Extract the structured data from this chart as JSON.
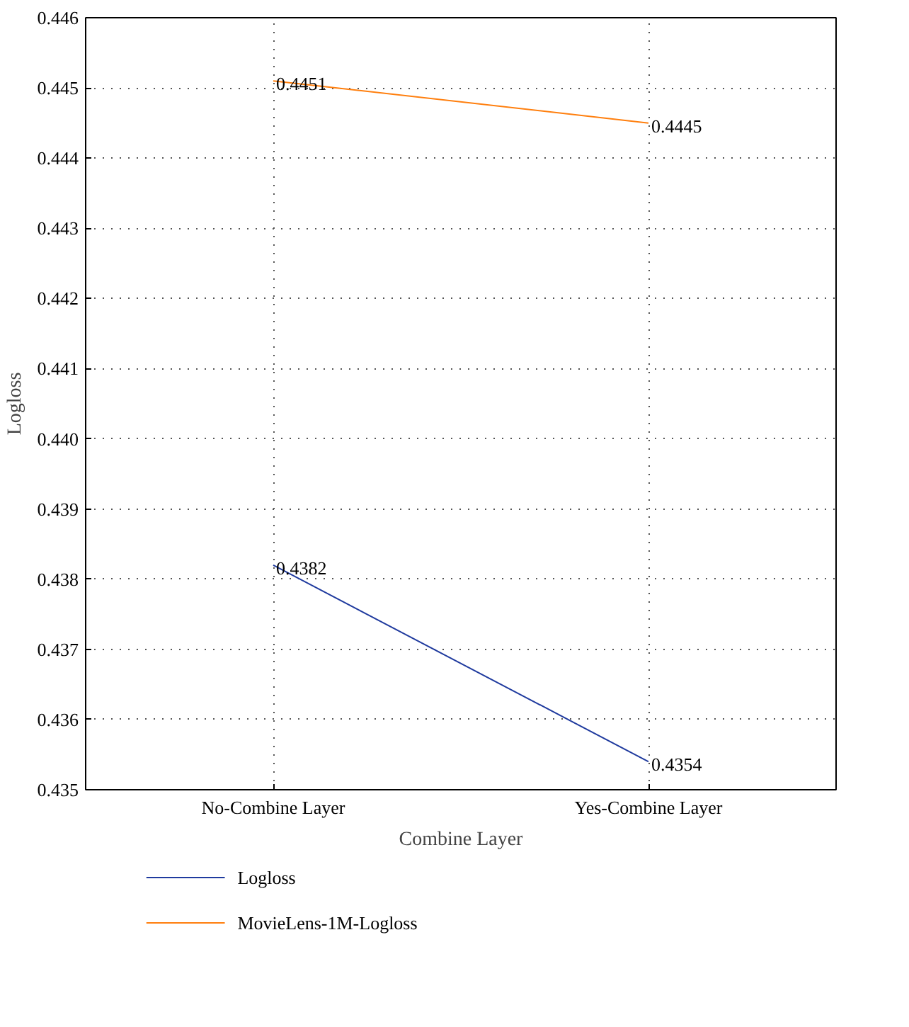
{
  "chart_data": {
    "type": "line",
    "xlabel": "Combine Layer",
    "ylabel": "Logloss",
    "categories": [
      "No-Combine Layer",
      "Yes-Combine Layer"
    ],
    "series": [
      {
        "name": "Logloss",
        "color": "#1f3a9e",
        "values": [
          0.4382,
          0.4354
        ]
      },
      {
        "name": "MovieLens-1M-Logloss",
        "color": "#ff7f0e",
        "values": [
          0.4451,
          0.4445
        ]
      }
    ],
    "ylim": [
      0.435,
      0.446
    ],
    "yticks": [
      0.435,
      0.436,
      0.437,
      0.438,
      0.439,
      {
        "value": 0.44,
        "label": "0.440"
      },
      0.441,
      0.442,
      0.443,
      0.444,
      0.445,
      0.446
    ],
    "grid": true,
    "legend": "bottom",
    "data_labels": true,
    "marker": "none",
    "line_style": "solid"
  }
}
